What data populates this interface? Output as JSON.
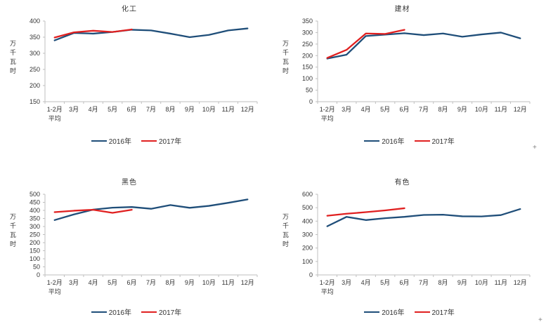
{
  "app": {
    "cursor_plus": "+"
  },
  "style": {
    "axis_line_color": "#BFBFBF",
    "tick_text_color": "#333333",
    "series_2016_color": "#1F4E79",
    "series_2017_color": "#E02020"
  },
  "chart_data": [
    {
      "type": "line",
      "title": "化工",
      "ylabel": "万千瓦时",
      "ylim": [
        150,
        400
      ],
      "ystep": 50,
      "grid": false,
      "legend_position": "bottom",
      "categories": [
        "1-2月",
        "3月",
        "4月",
        "5月",
        "6月",
        "7月",
        "8月",
        "9月",
        "10月",
        "11月",
        "12月"
      ],
      "category_first_line2": "平均",
      "series": [
        {
          "name": "2016年",
          "color": "#1F4E79",
          "values": [
            340,
            363,
            361,
            366,
            373,
            371,
            361,
            350,
            357,
            371,
            377
          ]
        },
        {
          "name": "2017年",
          "color": "#E02020",
          "values": [
            349,
            365,
            370,
            366,
            374
          ]
        }
      ]
    },
    {
      "type": "line",
      "title": "建材",
      "ylabel": "万千瓦时",
      "ylim": [
        0,
        350
      ],
      "ystep": 50,
      "grid": false,
      "legend_position": "bottom",
      "categories": [
        "1-2月",
        "3月",
        "4月",
        "5月",
        "6月",
        "7月",
        "8月",
        "9月",
        "10月",
        "11月",
        "12月"
      ],
      "category_first_line2": "平均",
      "series": [
        {
          "name": "2016年",
          "color": "#1F4E79",
          "values": [
            187,
            204,
            285,
            291,
            297,
            289,
            296,
            282,
            292,
            300,
            275
          ]
        },
        {
          "name": "2017年",
          "color": "#E02020",
          "values": [
            190,
            225,
            296,
            294,
            312
          ]
        }
      ]
    },
    {
      "type": "line",
      "title": "黑色",
      "ylabel": "万千瓦时",
      "ylim": [
        0,
        500
      ],
      "ystep": 50,
      "grid": false,
      "legend_position": "bottom",
      "categories": [
        "1-2月",
        "3月",
        "4月",
        "5月",
        "6月",
        "7月",
        "8月",
        "9月",
        "10月",
        "11月",
        "12月"
      ],
      "category_first_line2": "平均",
      "series": [
        {
          "name": "2016年",
          "color": "#1F4E79",
          "values": [
            340,
            375,
            405,
            417,
            421,
            410,
            433,
            416,
            428,
            447,
            468
          ]
        },
        {
          "name": "2017年",
          "color": "#E02020",
          "values": [
            389,
            398,
            404,
            385,
            404
          ]
        }
      ]
    },
    {
      "type": "line",
      "title": "有色",
      "ylabel": "万千瓦时",
      "ylim": [
        0,
        600
      ],
      "ystep": 100,
      "grid": false,
      "legend_position": "bottom",
      "categories": [
        "1-2月",
        "3月",
        "4月",
        "5月",
        "6月",
        "7月",
        "8月",
        "9月",
        "10月",
        "11月",
        "12月"
      ],
      "category_first_line2": "平均",
      "series": [
        {
          "name": "2016年",
          "color": "#1F4E79",
          "values": [
            362,
            432,
            408,
            422,
            432,
            446,
            448,
            436,
            435,
            445,
            490
          ]
        },
        {
          "name": "2017年",
          "color": "#E02020",
          "values": [
            440,
            455,
            467,
            480,
            496
          ]
        }
      ]
    }
  ]
}
